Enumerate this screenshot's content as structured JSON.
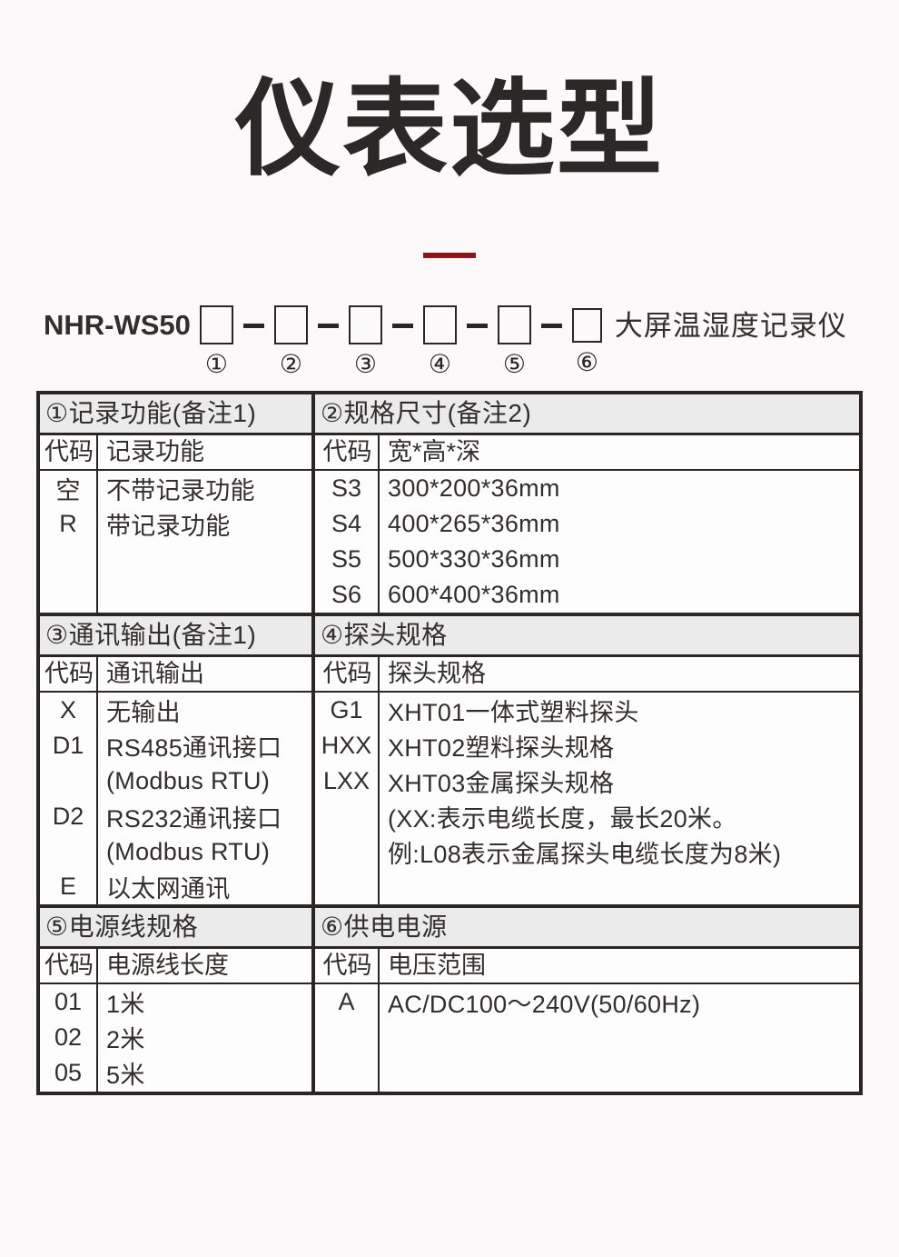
{
  "page": {
    "title": "仪表选型"
  },
  "model": {
    "prefix": "NHR-WS50",
    "suffix": "大屏温湿度记录仪",
    "positions": [
      "①",
      "②",
      "③",
      "④",
      "⑤",
      "⑥"
    ]
  },
  "sections": [
    {
      "title": "①记录功能(备注1)",
      "code_header": "代码",
      "desc_header": "记录功能",
      "lines": [
        {
          "code": "空",
          "desc": "不带记录功能"
        },
        {
          "code": "R",
          "desc": "带记录功能"
        }
      ]
    },
    {
      "title": "②规格尺寸(备注2)",
      "code_header": "代码",
      "desc_header": "宽*高*深",
      "lines": [
        {
          "code": "S3",
          "desc": "300*200*36mm"
        },
        {
          "code": "S4",
          "desc": "400*265*36mm"
        },
        {
          "code": "S5",
          "desc": "500*330*36mm"
        },
        {
          "code": "S6",
          "desc": "600*400*36mm"
        }
      ]
    },
    {
      "title": "③通讯输出(备注1)",
      "code_header": "代码",
      "desc_header": "通讯输出",
      "lines": [
        {
          "code": "X",
          "desc": "无输出"
        },
        {
          "code": "D1",
          "desc": "RS485通讯接口"
        },
        {
          "code": "",
          "desc": "(Modbus RTU)"
        },
        {
          "code": "D2",
          "desc": "RS232通讯接口"
        },
        {
          "code": "",
          "desc": "(Modbus RTU)"
        },
        {
          "code": "E",
          "desc": "以太网通讯"
        }
      ]
    },
    {
      "title": "④探头规格",
      "code_header": "代码",
      "desc_header": "探头规格",
      "lines": [
        {
          "code": "G1",
          "desc": "XHT01一体式塑料探头"
        },
        {
          "code": "HXX",
          "desc": "XHT02塑料探头规格"
        },
        {
          "code": "LXX",
          "desc": "XHT03金属探头规格"
        },
        {
          "code": "",
          "desc": "(XX:表示电缆长度，最长20米。"
        },
        {
          "code": "",
          "desc": "例:L08表示金属探头电缆长度为8米)"
        }
      ]
    },
    {
      "title": "⑤电源线规格",
      "code_header": "代码",
      "desc_header": "电源线长度",
      "lines": [
        {
          "code": "01",
          "desc": "1米"
        },
        {
          "code": "02",
          "desc": "2米"
        },
        {
          "code": "05",
          "desc": "5米"
        }
      ]
    },
    {
      "title": "⑥供电电源",
      "code_header": "代码",
      "desc_header": "电压范围",
      "lines": [
        {
          "code": "A",
          "desc": "AC/DC100～240V(50/60Hz)"
        }
      ]
    }
  ],
  "colors": {
    "accent_red": "#8a151b",
    "border": "#2b2524",
    "header_bg": "#ebebeb",
    "page_bg": "#fbf9f9"
  }
}
